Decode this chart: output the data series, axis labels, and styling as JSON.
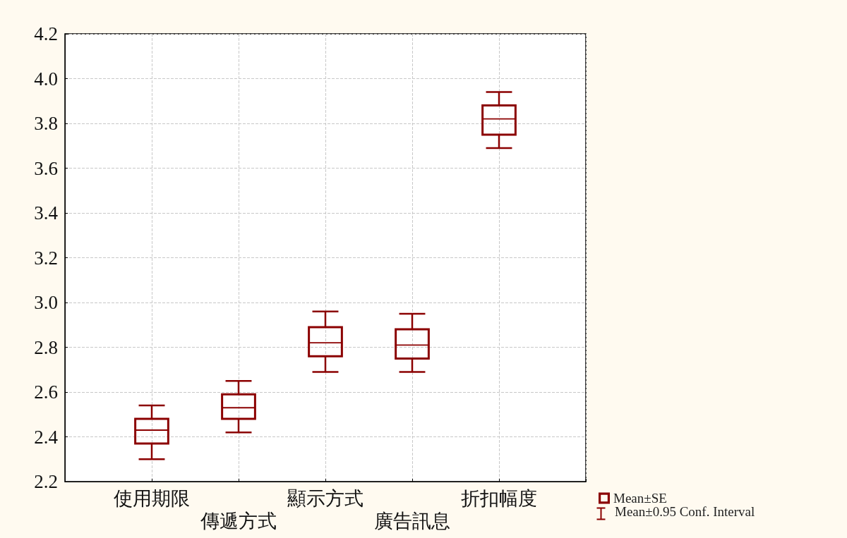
{
  "chart_data": {
    "type": "box",
    "categories": [
      "使用期限",
      "傳遞方式",
      "顯示方式",
      "廣告訊息",
      "折扣幅度"
    ],
    "series": [
      {
        "name": "Mean±SE",
        "color": "#8b0000",
        "boxes": [
          {
            "low": 2.3,
            "q1": 2.37,
            "median": 2.43,
            "q3": 2.48,
            "high": 2.54
          },
          {
            "low": 2.42,
            "q1": 2.48,
            "median": 2.53,
            "q3": 2.59,
            "high": 2.65
          },
          {
            "low": 2.69,
            "q1": 2.76,
            "median": 2.82,
            "q3": 2.89,
            "high": 2.96
          },
          {
            "low": 2.69,
            "q1": 2.75,
            "median": 2.81,
            "q3": 2.88,
            "high": 2.95
          },
          {
            "low": 3.69,
            "q1": 3.75,
            "median": 3.82,
            "q3": 3.88,
            "high": 3.94
          }
        ]
      }
    ],
    "annotations": [
      "Mean±0.95 Conf. Interval"
    ],
    "ylim": [
      2.2,
      4.2
    ],
    "yticks": [
      2.2,
      2.4,
      2.6,
      2.8,
      {
        "value": 3,
        "label": "3.0"
      },
      3.2,
      3.4,
      3.6,
      3.8,
      {
        "value": 4,
        "label": "4.0"
      },
      4.2
    ],
    "grid": true,
    "legend": "bottom right"
  }
}
